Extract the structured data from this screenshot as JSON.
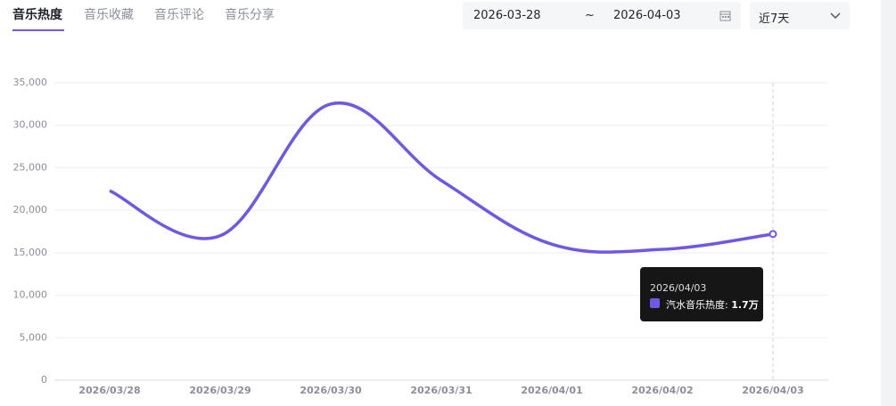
{
  "tabs": [
    "音乐热度",
    "音乐收藏",
    "音乐评论",
    "音乐分享"
  ],
  "active_tab": 0,
  "date_range": {
    "start": "2026-03-28",
    "separator": "~",
    "end": "2026-04-03"
  },
  "period_select": "近7天",
  "chart_data": {
    "type": "line",
    "categories": [
      "2026/03/28",
      "2026/03/29",
      "2026/03/30",
      "2026/03/31",
      "2026/04/01",
      "2026/04/02",
      "2026/04/03"
    ],
    "series": [
      {
        "name": "汽水音乐热度",
        "color": "#7256e6",
        "values": [
          22300,
          17000,
          32500,
          23500,
          16000,
          15400,
          17200
        ],
        "value_labels": [
          null,
          null,
          null,
          null,
          null,
          null,
          "1.7万"
        ]
      }
    ],
    "ylim": [
      0,
      35000
    ],
    "yticks": [
      0,
      {
        "value": 5000,
        "label": "5,000"
      },
      {
        "value": 10000,
        "label": "10,000"
      },
      {
        "value": 15000,
        "label": "15,000"
      },
      {
        "value": 20000,
        "label": "20,000"
      },
      {
        "value": 25000,
        "label": "25,000"
      },
      {
        "value": 30000,
        "label": "30,000"
      },
      {
        "value": 35000,
        "label": "35,000"
      }
    ],
    "grid": true,
    "tooltip": {
      "index": 6,
      "separator": ":"
    }
  }
}
